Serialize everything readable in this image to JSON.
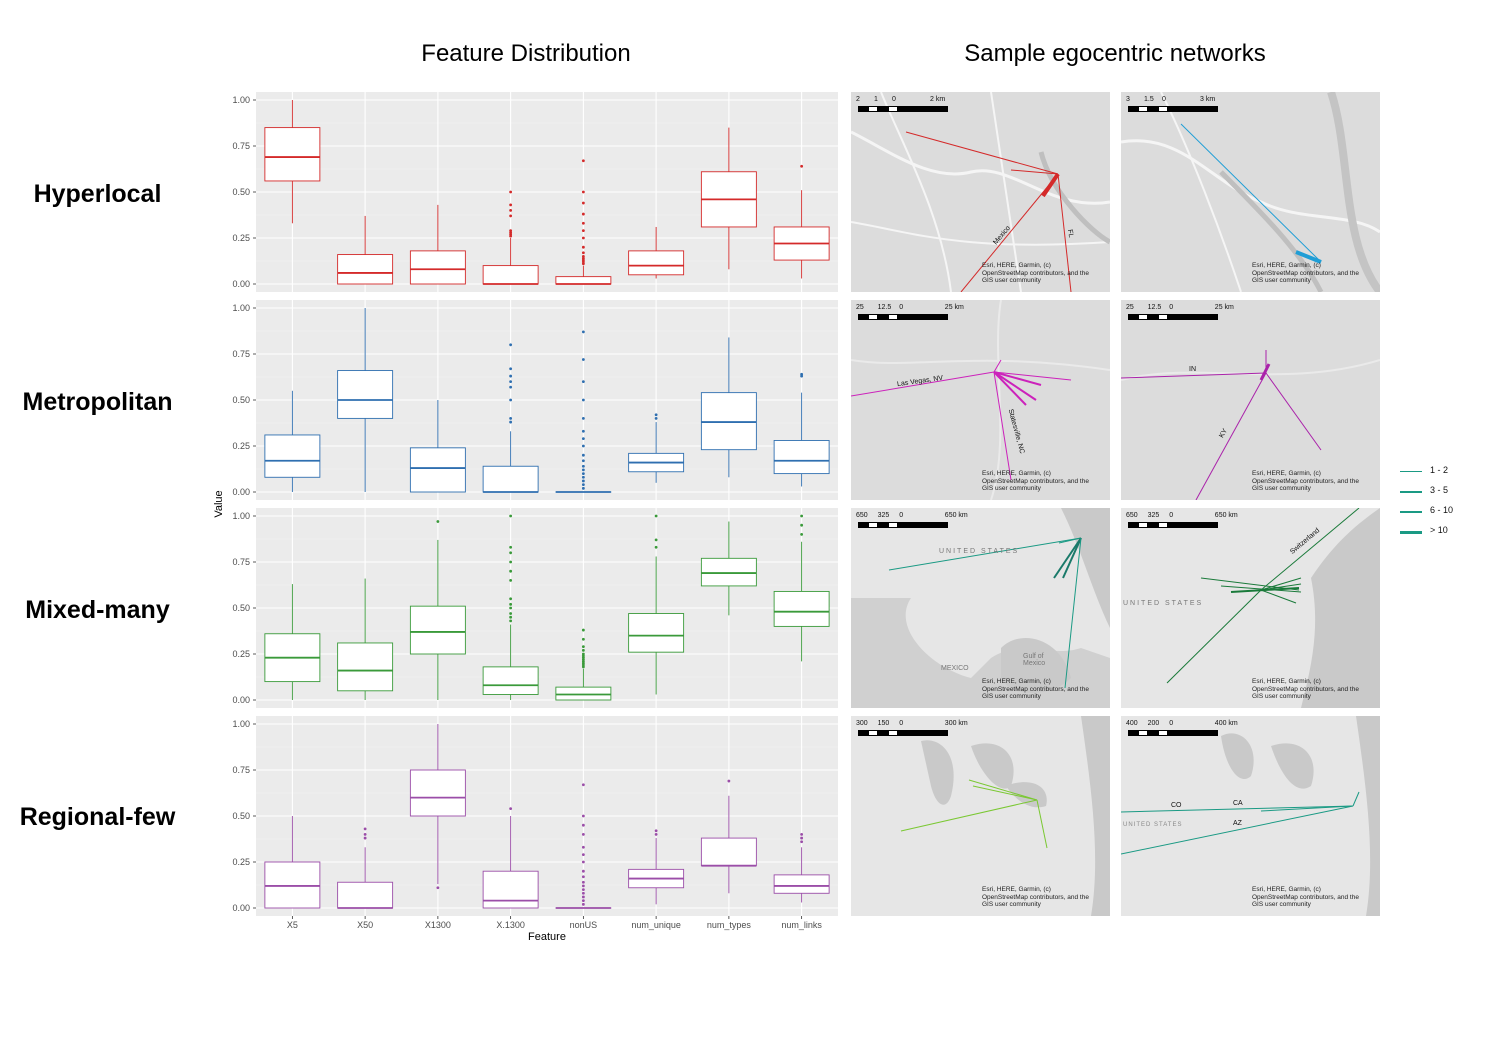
{
  "headers": {
    "left": "Feature Distribution",
    "right": "Sample egocentric networks"
  },
  "chart_data": {
    "type": "boxplot",
    "ylabel": "Value",
    "xlabel": "Feature",
    "ylim": [
      0,
      1
    ],
    "y_ticks": [
      "0.00",
      "0.25",
      "0.50",
      "0.75",
      "1.00"
    ],
    "categories": [
      "X5",
      "X50",
      "X1300",
      "X.1300",
      "nonUS",
      "num_unique",
      "num_types",
      "num_links"
    ],
    "facets": [
      {
        "name": "Hyperlocal",
        "color": "#d42a2a",
        "boxes": [
          {
            "q1": 0.56,
            "median": 0.69,
            "q3": 0.85,
            "whisker_low": 0.33,
            "whisker_high": 1.0,
            "outliers": []
          },
          {
            "q1": 0.0,
            "median": 0.06,
            "q3": 0.16,
            "whisker_low": 0.0,
            "whisker_high": 0.37,
            "outliers": []
          },
          {
            "q1": 0.0,
            "median": 0.08,
            "q3": 0.18,
            "whisker_low": 0.0,
            "whisker_high": 0.43,
            "outliers": []
          },
          {
            "q1": 0.0,
            "median": 0.0,
            "q3": 0.1,
            "whisker_low": 0.0,
            "whisker_high": 0.25,
            "outliers": [
              0.26,
              0.27,
              0.28,
              0.29,
              0.37,
              0.4,
              0.43,
              0.5
            ]
          },
          {
            "q1": 0.0,
            "median": 0.0,
            "q3": 0.04,
            "whisker_low": 0.0,
            "whisker_high": 0.1,
            "outliers": [
              0.11,
              0.12,
              0.13,
              0.14,
              0.15,
              0.17,
              0.2,
              0.25,
              0.29,
              0.33,
              0.38,
              0.44,
              0.5,
              0.67
            ]
          },
          {
            "q1": 0.05,
            "median": 0.1,
            "q3": 0.18,
            "whisker_low": 0.03,
            "whisker_high": 0.31,
            "outliers": []
          },
          {
            "q1": 0.31,
            "median": 0.46,
            "q3": 0.61,
            "whisker_low": 0.08,
            "whisker_high": 0.85,
            "outliers": []
          },
          {
            "q1": 0.13,
            "median": 0.22,
            "q3": 0.31,
            "whisker_low": 0.03,
            "whisker_high": 0.51,
            "outliers": [
              0.64
            ]
          }
        ]
      },
      {
        "name": "Metropolitan",
        "color": "#2f6fb0",
        "boxes": [
          {
            "q1": 0.08,
            "median": 0.17,
            "q3": 0.31,
            "whisker_low": 0.0,
            "whisker_high": 0.55,
            "outliers": []
          },
          {
            "q1": 0.4,
            "median": 0.5,
            "q3": 0.66,
            "whisker_low": 0.0,
            "whisker_high": 1.0,
            "outliers": []
          },
          {
            "q1": 0.0,
            "median": 0.13,
            "q3": 0.24,
            "whisker_low": 0.0,
            "whisker_high": 0.5,
            "outliers": []
          },
          {
            "q1": 0.0,
            "median": 0.0,
            "q3": 0.14,
            "whisker_low": 0.0,
            "whisker_high": 0.33,
            "outliers": [
              0.38,
              0.4,
              0.5,
              0.57,
              0.6,
              0.63,
              0.67,
              0.8
            ]
          },
          {
            "q1": 0.0,
            "median": 0.0,
            "q3": 0.0,
            "whisker_low": 0.0,
            "whisker_high": 0.0,
            "outliers": [
              0.02,
              0.04,
              0.06,
              0.08,
              0.1,
              0.12,
              0.14,
              0.17,
              0.2,
              0.25,
              0.29,
              0.33,
              0.4,
              0.5,
              0.6,
              0.72,
              0.87
            ]
          },
          {
            "q1": 0.11,
            "median": 0.16,
            "q3": 0.21,
            "whisker_low": 0.05,
            "whisker_high": 0.38,
            "outliers": [
              0.4,
              0.42
            ]
          },
          {
            "q1": 0.23,
            "median": 0.38,
            "q3": 0.54,
            "whisker_low": 0.08,
            "whisker_high": 0.84,
            "outliers": []
          },
          {
            "q1": 0.1,
            "median": 0.17,
            "q3": 0.28,
            "whisker_low": 0.03,
            "whisker_high": 0.54,
            "outliers": [
              0.63,
              0.64
            ]
          }
        ]
      },
      {
        "name": "Mixed-many",
        "color": "#3a9a3a",
        "boxes": [
          {
            "q1": 0.1,
            "median": 0.23,
            "q3": 0.36,
            "whisker_low": 0.0,
            "whisker_high": 0.63,
            "outliers": []
          },
          {
            "q1": 0.05,
            "median": 0.16,
            "q3": 0.31,
            "whisker_low": 0.0,
            "whisker_high": 0.66,
            "outliers": []
          },
          {
            "q1": 0.25,
            "median": 0.37,
            "q3": 0.51,
            "whisker_low": 0.0,
            "whisker_high": 0.87,
            "outliers": [
              0.97
            ]
          },
          {
            "q1": 0.03,
            "median": 0.08,
            "q3": 0.18,
            "whisker_low": 0.0,
            "whisker_high": 0.41,
            "outliers": [
              0.43,
              0.45,
              0.47,
              0.5,
              0.52,
              0.55,
              0.65,
              0.7,
              0.75,
              0.8,
              0.83,
              1.0
            ]
          },
          {
            "q1": 0.0,
            "median": 0.03,
            "q3": 0.07,
            "whisker_low": 0.0,
            "whisker_high": 0.17,
            "outliers": [
              0.18,
              0.19,
              0.2,
              0.21,
              0.22,
              0.23,
              0.24,
              0.25,
              0.27,
              0.29,
              0.33,
              0.38
            ]
          },
          {
            "q1": 0.26,
            "median": 0.35,
            "q3": 0.47,
            "whisker_low": 0.03,
            "whisker_high": 0.78,
            "outliers": [
              0.83,
              0.87,
              1.0
            ]
          },
          {
            "q1": 0.62,
            "median": 0.69,
            "q3": 0.77,
            "whisker_low": 0.46,
            "whisker_high": 0.97,
            "outliers": []
          },
          {
            "q1": 0.4,
            "median": 0.48,
            "q3": 0.59,
            "whisker_low": 0.21,
            "whisker_high": 0.86,
            "outliers": [
              0.9,
              0.95,
              1.0
            ]
          }
        ]
      },
      {
        "name": "Regional-few",
        "color": "#9b4ea8",
        "boxes": [
          {
            "q1": 0.0,
            "median": 0.12,
            "q3": 0.25,
            "whisker_low": 0.0,
            "whisker_high": 0.5,
            "outliers": []
          },
          {
            "q1": 0.0,
            "median": 0.0,
            "q3": 0.14,
            "whisker_low": 0.0,
            "whisker_high": 0.33,
            "outliers": [
              0.38,
              0.4,
              0.43
            ]
          },
          {
            "q1": 0.5,
            "median": 0.6,
            "q3": 0.75,
            "whisker_low": 0.13,
            "whisker_high": 1.0,
            "outliers": [
              0.11
            ]
          },
          {
            "q1": 0.0,
            "median": 0.04,
            "q3": 0.2,
            "whisker_low": 0.0,
            "whisker_high": 0.5,
            "outliers": [
              0.54
            ]
          },
          {
            "q1": 0.0,
            "median": 0.0,
            "q3": 0.0,
            "whisker_low": 0.0,
            "whisker_high": 0.0,
            "outliers": [
              0.02,
              0.04,
              0.06,
              0.08,
              0.1,
              0.12,
              0.14,
              0.17,
              0.2,
              0.25,
              0.29,
              0.33,
              0.4,
              0.45,
              0.5,
              0.67
            ]
          },
          {
            "q1": 0.11,
            "median": 0.16,
            "q3": 0.21,
            "whisker_low": 0.02,
            "whisker_high": 0.38,
            "outliers": [
              0.4,
              0.42
            ]
          },
          {
            "q1": 0.23,
            "median": 0.23,
            "q3": 0.38,
            "whisker_low": 0.08,
            "whisker_high": 0.61,
            "outliers": [
              0.69
            ]
          },
          {
            "q1": 0.08,
            "median": 0.12,
            "q3": 0.18,
            "whisker_low": 0.03,
            "whisker_high": 0.33,
            "outliers": [
              0.36,
              0.38,
              0.4
            ]
          }
        ]
      }
    ]
  },
  "maps": [
    {
      "scale": [
        "2",
        "1",
        "0",
        "2 km"
      ],
      "color": "#d42a2a",
      "labels": [
        "Mexico",
        "FL"
      ]
    },
    {
      "scale": [
        "3",
        "1.5",
        "0",
        "3 km"
      ],
      "color": "#1f9ed6",
      "labels": []
    },
    {
      "scale": [
        "25",
        "12.5",
        "0",
        "25 km"
      ],
      "color": "#cc22bb",
      "labels": [
        "Las Vegas, NV",
        "Statesville, NC"
      ]
    },
    {
      "scale": [
        "25",
        "12.5",
        "0",
        "25 km"
      ],
      "color": "#aa22aa",
      "labels": [
        "IN",
        "KY"
      ]
    },
    {
      "scale": [
        "650",
        "325",
        "0",
        "650 km"
      ],
      "color": "#1a9a84",
      "labels": [
        "UNITED STATES",
        "MEXICO",
        "Gulf of Mexico"
      ]
    },
    {
      "scale": [
        "650",
        "325",
        "0",
        "650 km"
      ],
      "color": "#1a7a3a",
      "labels": [
        "Switzerland",
        "UNITED STATES"
      ]
    },
    {
      "scale": [
        "300",
        "150",
        "0",
        "300 km"
      ],
      "color": "#7ac832",
      "labels": []
    },
    {
      "scale": [
        "400",
        "200",
        "0",
        "400 km"
      ],
      "color": "#1a9a84",
      "labels": [
        "CO",
        "CA",
        "AZ",
        "UNITED STATES"
      ]
    }
  ],
  "attribution": [
    "Esri, HERE, Garmin, (c)",
    "OpenStreetMap contributors, and the",
    "GIS user community"
  ],
  "legend": {
    "items": [
      "1 - 2",
      "3 - 5",
      "6 - 10",
      "> 10"
    ],
    "color": "#1a9a84"
  }
}
